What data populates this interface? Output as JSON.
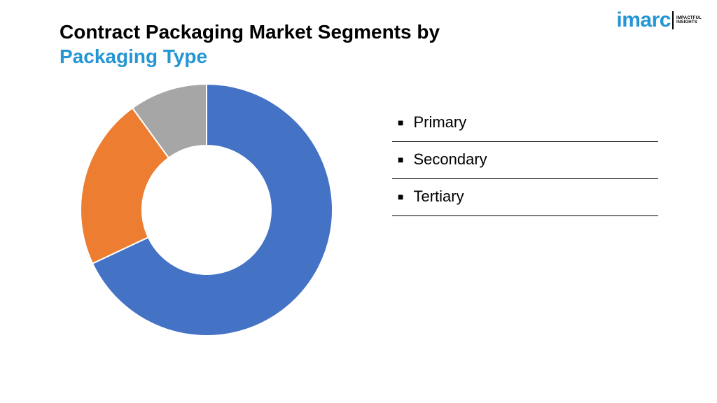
{
  "title": {
    "prefix": "Contract Packaging Market Segments by ",
    "accent": "Packaging Type",
    "fontsize": 28,
    "color_main": "#000000",
    "color_accent": "#2496d4"
  },
  "chart": {
    "type": "donut",
    "slices": [
      {
        "label": "Primary",
        "value": 68,
        "color": "#4472c4"
      },
      {
        "label": "Secondary",
        "value": 22,
        "color": "#ed7d31"
      },
      {
        "label": "Tertiary",
        "value": 10,
        "color": "#a6a6a6"
      }
    ],
    "outer_radius": 180,
    "inner_radius": 92,
    "inner_fill": "#ffffff",
    "background_color": "#ffffff",
    "start_angle_deg": -90,
    "stroke_color": "#ffffff",
    "stroke_width": 2
  },
  "legend": {
    "items": [
      "Primary",
      "Secondary",
      "Tertiary"
    ],
    "bullet": "■",
    "font_size": 22,
    "underline_color": "#000000"
  },
  "logo": {
    "word": "imarc",
    "tag_line1": "IMPACTFUL",
    "tag_line2": "INSIGHTS",
    "color": "#2496d4"
  }
}
